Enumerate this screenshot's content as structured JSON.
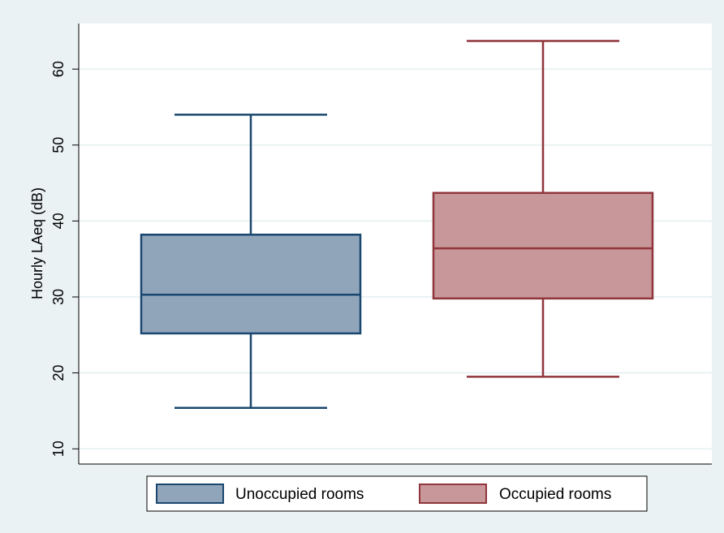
{
  "chart_data": {
    "type": "box",
    "ylabel": "Hourly LAeq (dB)",
    "xlabel": "",
    "title": "",
    "ylim": [
      8,
      66
    ],
    "yticks": [
      10,
      20,
      30,
      40,
      50,
      60
    ],
    "grid": true,
    "legend_position": "bottom",
    "series": [
      {
        "name": "Unoccupied rooms",
        "whisker_low": 15.4,
        "q1": 25.2,
        "median": 30.3,
        "q3": 38.2,
        "whisker_high": 54.0,
        "fill": "#90a5ba",
        "stroke": "#1a476f"
      },
      {
        "name": "Occupied rooms",
        "whisker_low": 19.5,
        "q1": 29.8,
        "median": 36.4,
        "q3": 43.7,
        "whisker_high": 63.7,
        "fill": "#c89799",
        "stroke": "#90353b"
      }
    ]
  }
}
